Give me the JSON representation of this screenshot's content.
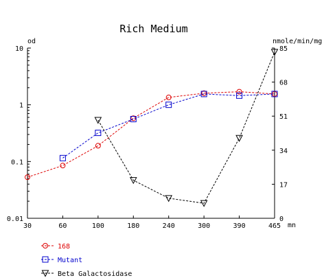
{
  "chart_data": {
    "type": "line",
    "title": "Rich Medium",
    "x_unit": "mn",
    "left_unit": "od",
    "right_unit": "nmole/min/mg",
    "x_ticks": [
      30,
      60,
      100,
      180,
      240,
      300,
      390,
      465
    ],
    "xlim": [
      30,
      465
    ],
    "left_scale": "log",
    "ylim_left": [
      0.01,
      10
    ],
    "left_ticks": [
      "0.01",
      "0.1",
      "1",
      "10"
    ],
    "ylim_right": [
      0,
      85
    ],
    "right_ticks": [
      "0",
      "17",
      "34",
      "51",
      "68",
      "85"
    ],
    "grid": false,
    "legend_position": "bottom-left",
    "series": [
      {
        "name": "168",
        "axis": "left",
        "marker": "circle",
        "color": "#dd0000",
        "x": [
          30,
          60,
          100,
          180,
          240,
          300,
          390,
          465
        ],
        "y": [
          0.053,
          0.085,
          0.19,
          0.58,
          1.35,
          1.6,
          1.7,
          1.55
        ]
      },
      {
        "name": "Mutant",
        "axis": "left",
        "marker": "square",
        "color": "#0000cc",
        "x": [
          60,
          100,
          180,
          240,
          300,
          390,
          465
        ],
        "y": [
          0.115,
          0.32,
          0.56,
          1.0,
          1.55,
          1.45,
          1.55
        ]
      },
      {
        "name": "Beta Galactosidase",
        "axis": "right",
        "marker": "triangle-down",
        "color": "#000000",
        "x": [
          100,
          180,
          240,
          300,
          390,
          465
        ],
        "y": [
          49,
          19,
          10,
          7.5,
          40,
          83
        ]
      }
    ]
  }
}
